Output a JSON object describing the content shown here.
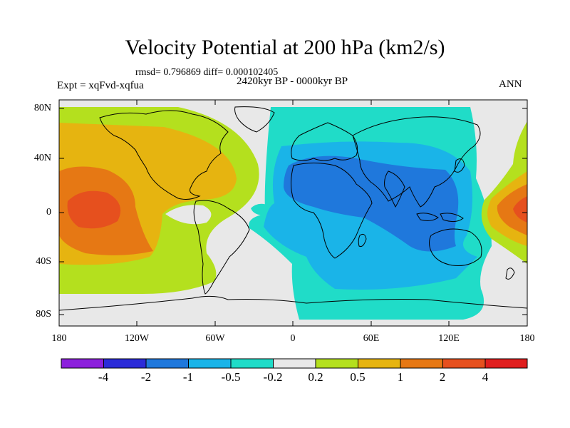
{
  "plot": {
    "title": "Velocity Potential at 200 hPa (km2/s)",
    "stats": "rmsd= 0.796869 diff= 0.000102405",
    "experiment": "Expt = xqFvd-xqfua",
    "period": "2420kyr BP - 0000kyr BP",
    "season": "ANN"
  },
  "axes": {
    "lat_labels": [
      "80N",
      "40N",
      "0",
      "40S",
      "80S"
    ],
    "lon_labels": [
      "180",
      "120W",
      "60W",
      "0",
      "60E",
      "120E",
      "180"
    ]
  },
  "colorbar": {
    "labels": [
      "-4",
      "-2",
      "-1",
      "-0.5",
      "-0.2",
      "0.2",
      "0.5",
      "1",
      "2",
      "4"
    ],
    "colors": [
      "#8c1fdc",
      "#2b2bd8",
      "#1f78dc",
      "#1ab4e8",
      "#20dcc8",
      "#e8e8e8",
      "#b4e01e",
      "#e6b410",
      "#e67814",
      "#e6501e",
      "#e01e1e"
    ]
  },
  "chart_data": {
    "type": "heatmap",
    "title": "Velocity Potential at 200 hPa (km2/s)",
    "variable": "velocity potential difference",
    "units": "km2/s",
    "levels": [
      -4,
      -2,
      -1,
      -0.5,
      -0.2,
      0.2,
      0.5,
      1,
      2,
      4
    ],
    "lon_range": [
      -180,
      180
    ],
    "lat_range": [
      -90,
      90
    ],
    "regions": [
      {
        "name": "Pacific positive anomaly",
        "min_level": 2,
        "center_lon": -160,
        "center_lat": 0
      },
      {
        "name": "Africa / Indian Ocean negative anomaly",
        "min_level": -1,
        "center_lon": 60,
        "center_lat": 5
      },
      {
        "name": "West Pacific positive anomaly",
        "min_level": 2,
        "center_lon": 165,
        "center_lat": 0
      }
    ]
  }
}
